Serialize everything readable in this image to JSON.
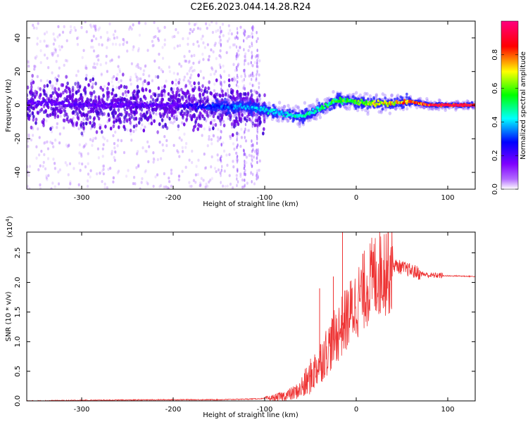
{
  "chart_data": [
    {
      "type": "heatmap",
      "title": "C2E6.2023.044.14.28.R24",
      "xlabel": "Height of straight line (km)",
      "ylabel": "Frequency (Hz)",
      "xlim": [
        -360,
        130
      ],
      "ylim": [
        -50,
        50
      ],
      "xticks": [
        -300,
        -200,
        -100,
        0,
        100
      ],
      "yticks": [
        -40,
        -20,
        0,
        20,
        40
      ],
      "colorbar": {
        "label": "Normalized spectral amplitude",
        "range": [
          0,
          1
        ],
        "ticks": [
          "0.0",
          "0.2",
          "0.4",
          "0.6",
          "0.8"
        ],
        "colors": [
          "#ffffff",
          "#7f00ff",
          "#0000ff",
          "#00ffff",
          "#00ff00",
          "#ffff00",
          "#ff0000",
          "#ff007f"
        ]
      },
      "ridge": {
        "x": [
          -360,
          -300,
          -250,
          -200,
          -150,
          -120,
          -100,
          -80,
          -60,
          -40,
          -20,
          0,
          20,
          40,
          60,
          80,
          100,
          130
        ],
        "y": [
          2,
          0,
          0,
          0,
          -1,
          -1,
          -3,
          -5,
          -7,
          -2,
          3,
          2,
          1,
          1,
          2,
          0,
          0,
          0
        ],
        "amplitude": [
          0.2,
          0.2,
          0.2,
          0.2,
          0.35,
          0.4,
          0.45,
          0.45,
          0.5,
          0.55,
          0.6,
          0.6,
          0.7,
          0.8,
          0.9,
          0.95,
          1.0,
          1.0
        ]
      },
      "grid": false
    },
    {
      "type": "line",
      "xlabel": "Height of straight line (km)",
      "ylabel": "SNR (10 * v/v)",
      "yscale_label": "(x10",
      "yscale_exp": "4",
      "yscale_close": ")",
      "xlim": [
        -360,
        130
      ],
      "ylim": [
        0,
        2.85
      ],
      "xticks": [
        -300,
        -200,
        -100,
        0,
        100
      ],
      "yticks": [
        "0.0",
        "0.5",
        "1.0",
        "1.5",
        "2.0",
        "2.5"
      ],
      "color": "#ee3333",
      "series": [
        {
          "x": [
            -360,
            -300,
            -200,
            -150,
            -120,
            -100,
            -90,
            -80,
            -70,
            -60,
            -50,
            -40,
            -30,
            -20,
            -10,
            0,
            10,
            20,
            30,
            40,
            50,
            60,
            70,
            80,
            90,
            100,
            110,
            130
          ],
          "y": [
            0.0,
            0.01,
            0.02,
            0.02,
            0.03,
            0.04,
            0.05,
            0.08,
            0.12,
            0.2,
            0.4,
            0.65,
            0.9,
            1.15,
            1.4,
            1.65,
            1.9,
            2.1,
            2.25,
            2.3,
            2.25,
            2.2,
            2.15,
            2.12,
            2.12,
            2.11,
            2.11,
            2.1
          ],
          "spikes": [
            {
              "x": -15,
              "y": 2.85
            },
            {
              "x": 35,
              "y": 2.85
            },
            {
              "x": -40,
              "y": 1.9
            },
            {
              "x": -25,
              "y": 2.1
            }
          ]
        }
      ],
      "grid": false
    }
  ]
}
